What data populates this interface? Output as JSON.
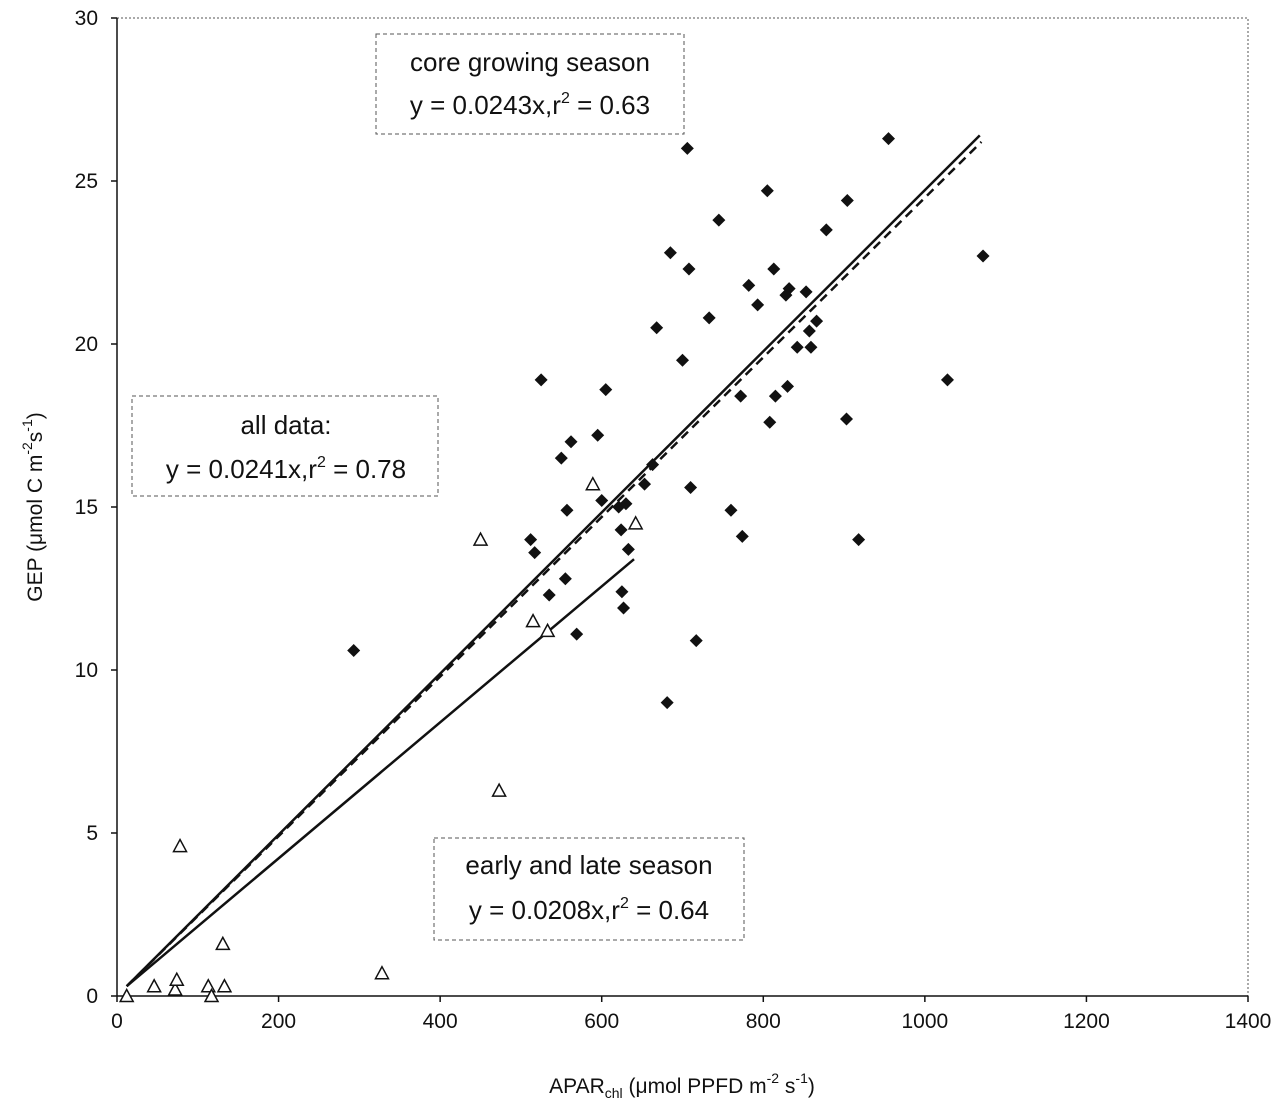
{
  "chart_data": {
    "type": "scatter",
    "xlabel": {
      "main": "APAR",
      "sub": "chl",
      "rest": " (μmol PPFD m",
      "sup1": "-2",
      "mid": " s",
      "sup2": "-1",
      "end": ")"
    },
    "ylabel": {
      "main": "GEP (μmol C m",
      "sup1": "-2",
      "mid": "s",
      "sup2": "-1",
      "end": ")"
    },
    "xlim": [
      0,
      1400
    ],
    "ylim": [
      0,
      30
    ],
    "xticks": [
      "0",
      "200",
      "400",
      "600",
      "800",
      "1000",
      "1200",
      "1400"
    ],
    "yticks": [
      "0",
      "5",
      "10",
      "15",
      "20",
      "25",
      "30"
    ],
    "grid": false,
    "series": [
      {
        "marker": "filled-diamond",
        "color": "#111111",
        "points": [
          [
            293,
            10.6
          ],
          [
            512,
            14.0
          ],
          [
            517,
            13.6
          ],
          [
            525,
            18.9
          ],
          [
            535,
            12.3
          ],
          [
            550,
            16.5
          ],
          [
            555,
            12.8
          ],
          [
            557,
            14.9
          ],
          [
            562,
            17.0
          ],
          [
            569,
            11.1
          ],
          [
            595,
            17.2
          ],
          [
            600,
            15.2
          ],
          [
            605,
            18.6
          ],
          [
            621,
            15.0
          ],
          [
            624,
            14.3
          ],
          [
            625,
            12.4
          ],
          [
            627,
            11.9
          ],
          [
            630,
            15.1
          ],
          [
            633,
            13.7
          ],
          [
            653,
            15.7
          ],
          [
            663,
            16.3
          ],
          [
            668,
            20.5
          ],
          [
            681,
            9.0
          ],
          [
            685,
            22.8
          ],
          [
            700,
            19.5
          ],
          [
            706,
            26.0
          ],
          [
            708,
            22.3
          ],
          [
            710,
            15.6
          ],
          [
            717,
            10.9
          ],
          [
            733,
            20.8
          ],
          [
            745,
            23.8
          ],
          [
            760,
            14.9
          ],
          [
            772,
            18.4
          ],
          [
            774,
            14.1
          ],
          [
            782,
            21.8
          ],
          [
            793,
            21.2
          ],
          [
            805,
            24.7
          ],
          [
            808,
            17.6
          ],
          [
            813,
            22.3
          ],
          [
            815,
            18.4
          ],
          [
            828,
            21.5
          ],
          [
            830,
            18.7
          ],
          [
            832,
            21.7
          ],
          [
            842,
            19.9
          ],
          [
            853,
            21.6
          ],
          [
            857,
            20.4
          ],
          [
            859,
            19.9
          ],
          [
            866,
            20.7
          ],
          [
            878,
            23.5
          ],
          [
            903,
            17.7
          ],
          [
            904,
            24.4
          ],
          [
            918,
            14.0
          ],
          [
            955,
            26.3
          ],
          [
            1028,
            18.9
          ],
          [
            1072,
            22.7
          ]
        ]
      },
      {
        "marker": "open-triangle",
        "color": "#111111",
        "points": [
          [
            12,
            0.0
          ],
          [
            46,
            0.3
          ],
          [
            72,
            0.2
          ],
          [
            74,
            0.5
          ],
          [
            78,
            4.6
          ],
          [
            113,
            0.3
          ],
          [
            117,
            0.0
          ],
          [
            131,
            1.6
          ],
          [
            133,
            0.3
          ],
          [
            328,
            0.7
          ],
          [
            450,
            14.0
          ],
          [
            473,
            6.3
          ],
          [
            515,
            11.5
          ],
          [
            533,
            11.2
          ],
          [
            589,
            15.7
          ],
          [
            642,
            14.5
          ]
        ]
      }
    ],
    "fits": [
      {
        "style": "solid",
        "from": [
          12,
          0.3
        ],
        "to": [
          1068,
          26.4
        ]
      },
      {
        "style": "dashed",
        "from": [
          12,
          0.3
        ],
        "to": [
          1070,
          26.2
        ]
      },
      {
        "style": "solid",
        "from": [
          12,
          0.3
        ],
        "to": [
          640,
          13.4
        ]
      }
    ],
    "annotations": [
      {
        "line1": "core growing season",
        "eq": "y = 0.0243x,r",
        "sup": "2",
        "eqend": " = 0.63"
      },
      {
        "line1": "all data:",
        "eq": "y = 0.0241x,r",
        "sup": "2",
        "eqend": " = 0.78"
      },
      {
        "line1": "early and late season",
        "eq": "y = 0.0208x,r",
        "sup": "2",
        "eqend": " = 0.64"
      }
    ]
  }
}
